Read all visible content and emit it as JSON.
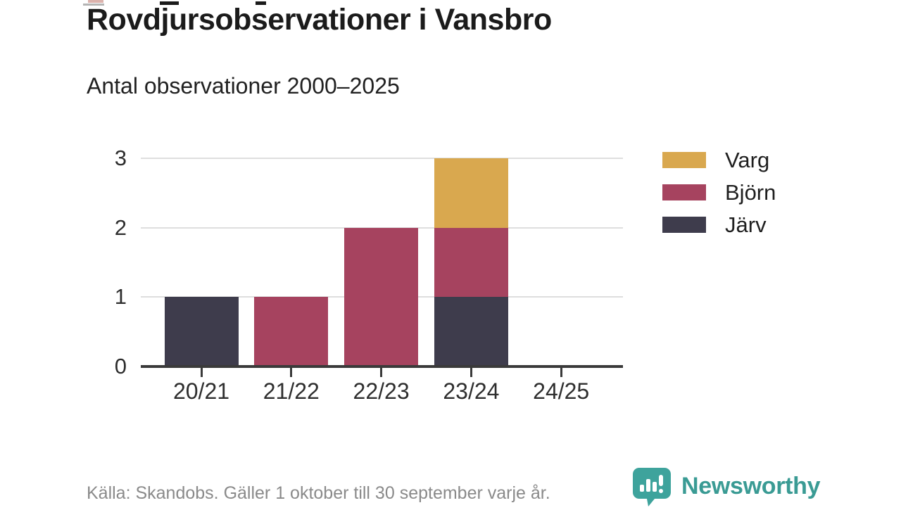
{
  "title": "Rovdjursobservationer i Vansbro",
  "subtitle": "Antal observationer 2000–2025",
  "source_note": "Källa: Skandobs. Gäller 1 oktober till 30 september varje år.",
  "branding": {
    "name": "Newsworthy",
    "logo_icon": "speech-bubble-bar-chart-icon",
    "color": "#3a9b94"
  },
  "chart_data": {
    "type": "bar",
    "stacked": true,
    "categories": [
      "20/21",
      "21/22",
      "22/23",
      "23/24",
      "24/25"
    ],
    "series": [
      {
        "name": "Varg",
        "color": "#d9a84f",
        "values": [
          0,
          0,
          0,
          1,
          0
        ]
      },
      {
        "name": "Björn",
        "color": "#a6435f",
        "values": [
          0,
          1,
          2,
          1,
          0
        ]
      },
      {
        "name": "Järv",
        "color": "#3e3c4c",
        "values": [
          1,
          0,
          0,
          1,
          0
        ]
      }
    ],
    "totals": [
      1,
      1,
      2,
      3,
      0
    ],
    "ylim": [
      0,
      3
    ],
    "yticks": [
      0,
      1,
      2,
      3
    ],
    "xlabel": "",
    "ylabel": "",
    "grid": "horizontal",
    "legend_position": "right",
    "axis_color": "#3a3a3a",
    "grid_color": "#dedede"
  }
}
